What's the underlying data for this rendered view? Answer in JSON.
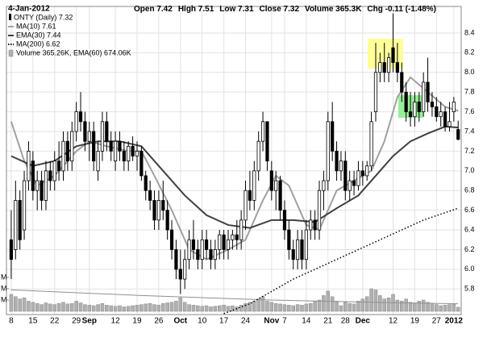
{
  "chart_data": {
    "type": "candlestick",
    "date": "4-Jan-2012",
    "header": [
      "Open 7.42",
      "High 7.51",
      "Low 7.31",
      "Close 7.32",
      "Volume 365.3K",
      "Chg -0.11 (-1.48%)"
    ],
    "name": "ONTY (Daily) 7.32",
    "xlim": [
      -1.1,
      103.7
    ],
    "ylim": [
      5.54,
      8.67
    ],
    "yticks": [
      5.8,
      {
        "value": 6.0,
        "label": "6.0"
      },
      6.2,
      6.4,
      6.6,
      6.8,
      {
        "value": 7.0,
        "label": "7.0"
      },
      7.2,
      7.4,
      7.6,
      7.8,
      {
        "value": 8.0,
        "label": "8.0"
      },
      8.2,
      8.4
    ],
    "xticks": [
      {
        "value": 0,
        "label": "8"
      },
      {
        "value": 5,
        "label": "15"
      },
      {
        "value": 10,
        "label": "22"
      },
      {
        "value": 15,
        "label": "29"
      },
      {
        "value": 18,
        "label": "Sep"
      },
      {
        "value": 24,
        "label": "12"
      },
      {
        "value": 29,
        "label": "19"
      },
      {
        "value": 34,
        "label": "26"
      },
      {
        "value": 39,
        "label": "Oct"
      },
      {
        "value": 44,
        "label": "10"
      },
      {
        "value": 49,
        "label": "17"
      },
      {
        "value": 54,
        "label": "24"
      },
      {
        "value": 60,
        "label": "Nov"
      },
      {
        "value": 63,
        "label": "7"
      },
      {
        "value": 68,
        "label": "14"
      },
      {
        "value": 73,
        "label": "21"
      },
      {
        "value": 77,
        "label": "28"
      },
      {
        "value": 81,
        "label": "Dec"
      },
      {
        "value": 88,
        "label": "12"
      },
      {
        "value": 93,
        "label": "19"
      },
      {
        "value": 98,
        "label": "27"
      },
      {
        "value": 102,
        "label": "2012"
      }
    ],
    "grid": true,
    "ohlc": [
      [
        6.3,
        6.6,
        5.9,
        6.1
      ],
      [
        6.2,
        6.9,
        6.1,
        6.7
      ],
      [
        6.7,
        6.8,
        6.2,
        6.3
      ],
      [
        6.4,
        7.0,
        6.3,
        6.9
      ],
      [
        6.9,
        7.3,
        6.8,
        7.2
      ],
      [
        7.1,
        7.2,
        6.7,
        6.8
      ],
      [
        6.8,
        7.0,
        6.6,
        6.9
      ],
      [
        6.9,
        7.0,
        6.6,
        6.7
      ],
      [
        6.7,
        7.1,
        6.6,
        7.0
      ],
      [
        7.0,
        7.1,
        6.8,
        6.9
      ],
      [
        6.9,
        7.2,
        6.8,
        7.1
      ],
      [
        7.1,
        7.3,
        6.9,
        7.0
      ],
      [
        7.0,
        7.4,
        6.9,
        7.3
      ],
      [
        7.3,
        7.4,
        7.0,
        7.1
      ],
      [
        7.1,
        7.5,
        7.0,
        7.4
      ],
      [
        7.4,
        7.7,
        7.3,
        7.6
      ],
      [
        7.6,
        7.8,
        7.4,
        7.5
      ],
      [
        7.5,
        7.6,
        7.2,
        7.3
      ],
      [
        7.3,
        7.5,
        7.1,
        7.4
      ],
      [
        7.4,
        7.5,
        7.0,
        7.1
      ],
      [
        7.0,
        7.3,
        6.9,
        7.2
      ],
      [
        7.2,
        7.6,
        7.1,
        7.5
      ],
      [
        7.5,
        7.6,
        7.2,
        7.3
      ],
      [
        7.3,
        7.4,
        7.1,
        7.2
      ],
      [
        7.1,
        7.4,
        7.0,
        7.3
      ],
      [
        7.3,
        7.4,
        7.1,
        7.2
      ],
      [
        7.2,
        7.3,
        7.0,
        7.1
      ],
      [
        7.1,
        7.3,
        7.0,
        7.25
      ],
      [
        7.25,
        7.35,
        7.1,
        7.15
      ],
      [
        7.15,
        7.3,
        7.0,
        7.2
      ],
      [
        7.2,
        7.25,
        6.9,
        6.95
      ],
      [
        6.95,
        7.0,
        6.7,
        6.8
      ],
      [
        6.8,
        6.9,
        6.6,
        6.7
      ],
      [
        6.7,
        6.8,
        6.4,
        6.5
      ],
      [
        6.5,
        6.8,
        6.4,
        6.7
      ],
      [
        6.7,
        6.9,
        6.5,
        6.6
      ],
      [
        6.6,
        6.7,
        6.3,
        6.4
      ],
      [
        6.4,
        6.5,
        6.1,
        6.2
      ],
      [
        6.2,
        6.3,
        5.9,
        6.0
      ],
      [
        6.0,
        6.2,
        5.75,
        5.9
      ],
      [
        5.9,
        6.2,
        5.8,
        6.1
      ],
      [
        6.1,
        6.4,
        6.0,
        6.3
      ],
      [
        6.3,
        6.5,
        6.1,
        6.2
      ],
      [
        6.2,
        6.3,
        6.0,
        6.1
      ],
      [
        6.1,
        6.4,
        6.0,
        6.3
      ],
      [
        6.3,
        6.4,
        6.1,
        6.2
      ],
      [
        6.2,
        6.3,
        6.0,
        6.1
      ],
      [
        6.1,
        6.3,
        6.0,
        6.2
      ],
      [
        6.2,
        6.4,
        6.1,
        6.35
      ],
      [
        6.35,
        6.4,
        6.1,
        6.2
      ],
      [
        6.2,
        6.4,
        6.1,
        6.3
      ],
      [
        6.3,
        6.4,
        6.2,
        6.35
      ],
      [
        6.35,
        6.5,
        6.2,
        6.3
      ],
      [
        6.3,
        6.6,
        6.2,
        6.5
      ],
      [
        6.5,
        6.9,
        6.4,
        6.8
      ],
      [
        6.8,
        7.0,
        6.6,
        6.7
      ],
      [
        6.7,
        7.1,
        6.6,
        7.0
      ],
      [
        7.0,
        7.4,
        6.9,
        7.3
      ],
      [
        7.3,
        7.6,
        7.2,
        7.5
      ],
      [
        7.5,
        7.5,
        7.0,
        7.1
      ],
      [
        7.0,
        7.1,
        6.7,
        6.8
      ],
      [
        6.8,
        7.0,
        6.6,
        6.9
      ],
      [
        6.9,
        6.95,
        6.5,
        6.6
      ],
      [
        6.6,
        6.7,
        6.3,
        6.4
      ],
      [
        6.4,
        6.5,
        6.1,
        6.2
      ],
      [
        6.2,
        6.3,
        6.0,
        6.1
      ],
      [
        6.1,
        6.4,
        6.0,
        6.3
      ],
      [
        6.3,
        6.4,
        6.0,
        6.1
      ],
      [
        6.1,
        6.5,
        6.0,
        6.4
      ],
      [
        6.4,
        6.6,
        6.3,
        6.5
      ],
      [
        6.5,
        6.6,
        6.3,
        6.4
      ],
      [
        6.4,
        6.9,
        6.3,
        6.8
      ],
      [
        6.8,
        7.0,
        6.6,
        6.9
      ],
      [
        6.9,
        7.6,
        6.8,
        7.5
      ],
      [
        7.5,
        7.7,
        7.1,
        7.2
      ],
      [
        7.2,
        7.3,
        6.9,
        7.0
      ],
      [
        7.0,
        7.2,
        6.9,
        7.1
      ],
      [
        7.1,
        7.2,
        6.7,
        6.8
      ],
      [
        6.8,
        7.0,
        6.7,
        6.9
      ],
      [
        6.9,
        7.0,
        6.75,
        6.85
      ],
      [
        6.85,
        7.1,
        6.8,
        7.0
      ],
      [
        7.0,
        7.1,
        6.85,
        6.95
      ],
      [
        6.95,
        7.1,
        6.9,
        7.05
      ],
      [
        7.05,
        7.6,
        7.0,
        7.5
      ],
      [
        7.6,
        8.3,
        7.5,
        8.0
      ],
      [
        8.0,
        8.2,
        7.9,
        8.1
      ],
      [
        8.1,
        8.3,
        7.9,
        8.0
      ],
      [
        8.0,
        8.2,
        7.9,
        8.15
      ],
      [
        8.25,
        8.6,
        8.0,
        8.1
      ],
      [
        8.1,
        8.3,
        7.9,
        8.0
      ],
      [
        8.0,
        8.1,
        7.7,
        7.8
      ],
      [
        7.8,
        7.9,
        7.5,
        7.6
      ],
      [
        7.6,
        7.8,
        7.45,
        7.55
      ],
      [
        7.55,
        7.8,
        7.45,
        7.7
      ],
      [
        7.7,
        7.8,
        7.5,
        7.6
      ],
      [
        7.6,
        8.0,
        7.55,
        7.9
      ],
      [
        7.9,
        8.15,
        7.6,
        7.7
      ],
      [
        7.7,
        7.8,
        7.55,
        7.65
      ],
      [
        7.65,
        7.75,
        7.5,
        7.55
      ],
      [
        7.55,
        7.7,
        7.45,
        7.6
      ],
      [
        7.6,
        7.65,
        7.4,
        7.45
      ],
      [
        7.45,
        7.7,
        7.4,
        7.5
      ],
      [
        7.6,
        7.75,
        7.5,
        7.7
      ],
      [
        7.42,
        7.51,
        7.31,
        7.32
      ]
    ],
    "series": [
      {
        "name": "MA(10) 7.61",
        "color": "#a0a0a0",
        "dash": false,
        "x": [
          0,
          3,
          6,
          10,
          15,
          18,
          22,
          27,
          30,
          33,
          37,
          41,
          45,
          50,
          54,
          58,
          61,
          64,
          68,
          71,
          75,
          79,
          83,
          86,
          89,
          92,
          96,
          100,
          103
        ],
        "values": [
          7.5,
          7.1,
          6.85,
          6.95,
          7.2,
          7.3,
          7.25,
          7.2,
          7.2,
          6.95,
          6.6,
          6.2,
          6.1,
          6.2,
          6.3,
          6.7,
          6.95,
          6.85,
          6.45,
          6.4,
          6.8,
          6.9,
          7.0,
          7.3,
          7.75,
          7.95,
          7.8,
          7.65,
          7.61
        ]
      },
      {
        "name": "EMA(30) 7.44",
        "color": "#404040",
        "dash": false,
        "x": [
          0,
          5,
          10,
          15,
          20,
          25,
          30,
          35,
          40,
          45,
          50,
          55,
          60,
          65,
          70,
          75,
          80,
          84,
          88,
          92,
          96,
          100,
          103
        ],
        "values": [
          7.15,
          7.05,
          7.1,
          7.25,
          7.3,
          7.3,
          7.25,
          7.0,
          6.75,
          6.55,
          6.45,
          6.42,
          6.5,
          6.5,
          6.48,
          6.62,
          6.75,
          6.95,
          7.15,
          7.3,
          7.38,
          7.45,
          7.44
        ]
      },
      {
        "name": "MA(200) 6.62",
        "color": "#000000",
        "dash": true,
        "x": [
          49,
          55,
          65,
          75,
          85,
          95,
          103
        ],
        "values": [
          5.55,
          5.65,
          5.9,
          6.1,
          6.3,
          6.5,
          6.62
        ]
      }
    ],
    "volume": {
      "name": "Volume 365.26K, EMA(60) 674.06K",
      "color": "#b0b0b0",
      "ylim": [
        0,
        3000000
      ],
      "yticks": [
        {
          "value": 1000000,
          "label": "M"
        },
        {
          "value": 2000000,
          "label": "M"
        },
        {
          "value": 3000000,
          "label": "M"
        }
      ],
      "values": [
        1500000,
        1300000,
        1100000,
        1200000,
        900000,
        800000,
        700000,
        600000,
        750000,
        650000,
        600000,
        700000,
        800000,
        650000,
        700000,
        900000,
        750000,
        600000,
        550000,
        500000,
        600000,
        700000,
        550000,
        500000,
        450000,
        500000,
        400000,
        450000,
        500000,
        550000,
        600000,
        650000,
        700000,
        600000,
        550000,
        700000,
        750000,
        800000,
        900000,
        1200000,
        800000,
        600000,
        550000,
        500000,
        450000,
        500000,
        400000,
        450000,
        500000,
        550000,
        450000,
        500000,
        400000,
        550000,
        700000,
        800000,
        900000,
        1100000,
        1300000,
        900000,
        800000,
        700000,
        650000,
        600000,
        550000,
        500000,
        600000,
        550000,
        650000,
        700000,
        900000,
        1000000,
        1400000,
        1800000,
        1300000,
        900000,
        500000,
        800000,
        700000,
        650000,
        900000,
        1100000,
        1300000,
        2000000,
        1900000,
        1400000,
        1100000,
        1200000,
        1500000,
        1000000,
        900000,
        1100000,
        800000,
        700000,
        900000,
        1000000,
        800000,
        700000,
        600000,
        500000,
        550000,
        600000,
        650000,
        365260
      ],
      "ema": {
        "color": "#909090",
        "x": [
          0,
          30,
          60,
          90,
          103
        ],
        "values": [
          1900000,
          1400000,
          1000000,
          750000,
          674060
        ]
      }
    }
  }
}
